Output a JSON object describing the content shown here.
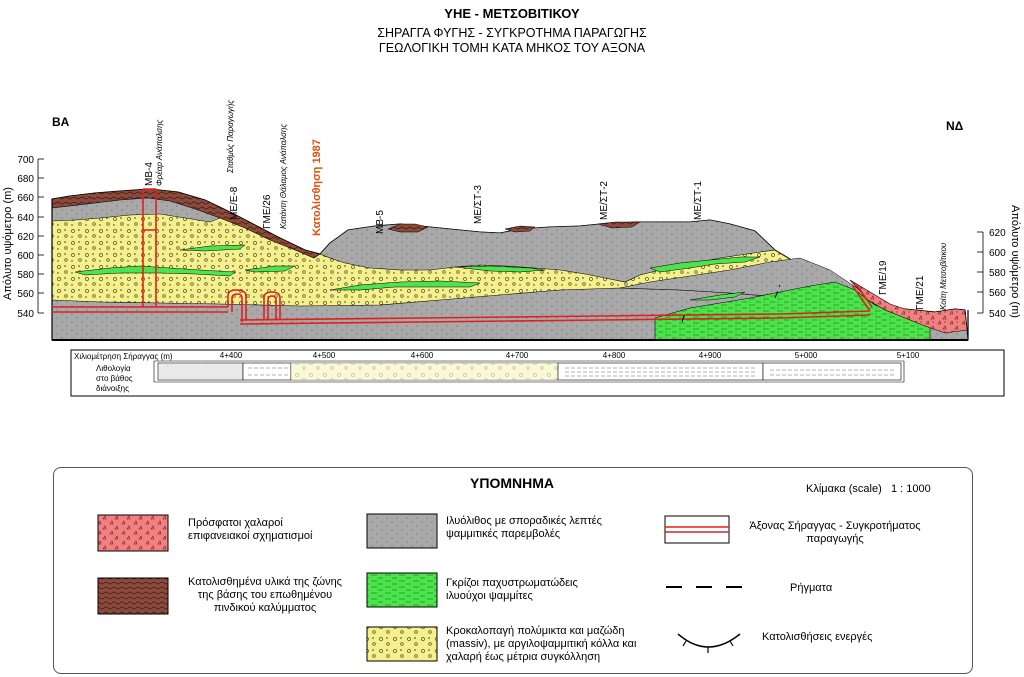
{
  "header": {
    "title": "ΥΗΕ - ΜΕΤΣΟΒΙΤΙΚΟΥ",
    "subtitle_1": "ΣΗΡΑΓΓΑ ΦΥΓΗΣ - ΣΥΓΚΡΟΤΗΜΑ ΠΑΡΑΓΩΓΗΣ",
    "subtitle_2": "ΓΕΩΛΟΓΙΚΗ ΤΟΜΗ ΚΑΤΑ ΜΗΚΟΣ ΤΟΥ ΑΞΟΝΑ"
  },
  "section": {
    "left_dir": "ΒΑ",
    "right_dir": "ΝΔ",
    "left_axis_label": "Απόλυτο υψόμετρο (m)",
    "right_axis_label": "Απόλυτο υψόμετρο (m)",
    "left_ticks": [
      "700",
      "680",
      "660",
      "640",
      "620",
      "600",
      "580",
      "560",
      "540"
    ],
    "right_ticks": [
      "620",
      "600",
      "580",
      "560",
      "540"
    ],
    "boreholes": {
      "mb4": "ΜΒ-4",
      "me_e8": "ΜΕ/Ε-8",
      "gme26": "ΓΜΕ/26",
      "mb5": "ΜΒ-5",
      "me_st3": "ΜΕ/ΣΤ-3",
      "me_st2": "ΜΕ/ΣΤ-2",
      "me_st1": "ΜΕ/ΣΤ-1",
      "gme19": "ΓΜΕ/19",
      "gme21": "ΓΜΕ/21"
    },
    "annotations": {
      "shaft": "Φρέαρ Ανάπαλσης",
      "station": "Σταθμός Παραγωγής",
      "chamber": "Κατάντη Θάλαμος Ανάπαλσης",
      "landslide": "Κατολίσθηση 1987",
      "river": "Κοίτη Μετσοβίτικου"
    }
  },
  "table": {
    "row1_label": "Χιλιομέτρηση Σήραγγας (m)",
    "row2_label_1": "Λιθολογία",
    "row2_label_2": "στο βάθος",
    "row2_label_3": "διάνοιξης",
    "chainages": [
      "4+400",
      "4+500",
      "4+600",
      "4+700",
      "4+800",
      "4+900",
      "5+000",
      "5+100"
    ]
  },
  "legend": {
    "title": "ΥΠΟΜΝΗΜΑ",
    "scale_label": "Κλίμακα (scale)",
    "scale_value": "1 : 1000",
    "items": {
      "recent_line1": "Πρόσφατοι χαλαροί",
      "recent_line2": "επιφανειακοί σχηματισμοί",
      "landslide_line1": "Κατολισθημένα υλικά της ζώνης",
      "landslide_line2": "της βάσης του επωθημένου",
      "landslide_line3": "πινδικού καλύμματος",
      "siltstone_line1": "Ιλυόλιθος με σποραδικές λεπτές",
      "siltstone_line2": "ψαμμιτικές παρεμβολές",
      "sandstone_line1": "Γκρίζοι παχυστρωματώδεις",
      "sandstone_line2": "ιλυούχοι ψαμμίτες",
      "conglomerate_line1": "Κροκαλοπαγή πολύμικτα και μαζώδη",
      "conglomerate_line2": "(massiv), με αργιλοψαμμιτική κόλλα και",
      "conglomerate_line3": "χαλαρή έως μέτρια συγκόλληση",
      "tunnel_line1": "Άξονας Σήραγγας - Συγκροτήματος",
      "tunnel_line2": "παραγωγής",
      "faults": "Ρήγματα",
      "active_landslides": "Κατολισθήσεις ενεργές"
    }
  },
  "colors": {
    "conglomerate": "#f5f08a",
    "siltstone": "#a9a9a9",
    "sandstone": "#4ce34c",
    "recent": "#f28080",
    "landslide_material": "#8b4a3c",
    "tunnel": "#e02020",
    "landslide_label": "#e05010"
  }
}
